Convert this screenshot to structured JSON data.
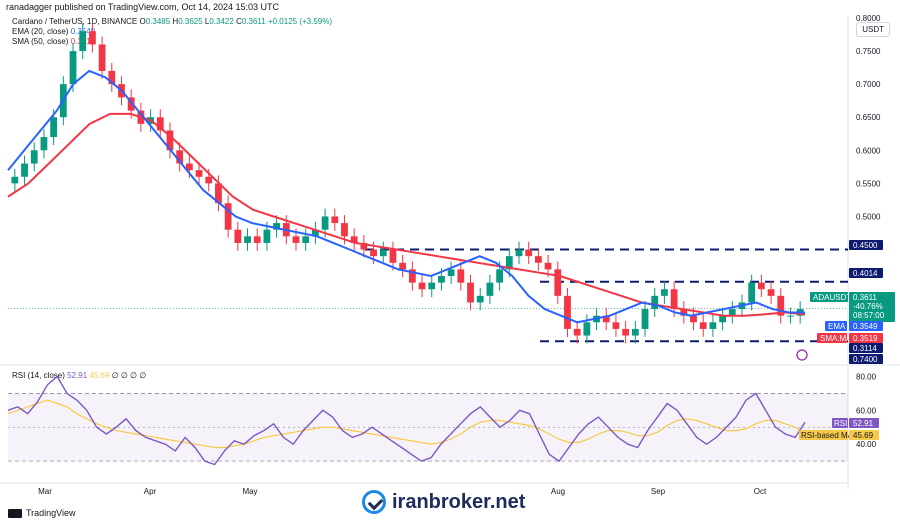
{
  "header": {
    "published": "ranadagger published on TradingView.com, Oct 14, 2024 15:03 UTC",
    "symbol_line": "Cardano / TetherUS, 1D, BINANCE",
    "ohlc": {
      "o_label": "O",
      "o": "0.3485",
      "h_label": "H",
      "h": "0.3625",
      "l_label": "L",
      "l": "0.3422",
      "c_label": "C",
      "c": "0.3611",
      "change": "+0.0125 (+3.59%)"
    },
    "ema_label": "EMA (20, close)",
    "ema_value": "0.3549",
    "sma_label": "SMA (50, close)",
    "sma_value": "0.3519",
    "rsi_label": "RSI (14, close)",
    "rsi_value": "52.91",
    "rsi_ma_value": "45.69",
    "rsi_extra": "∅ ∅ ∅ ∅"
  },
  "currency_button": "USDT",
  "footer": {
    "brand": "TradingView",
    "watermark": "iranbroker.net"
  },
  "colors": {
    "up": "#089981",
    "down": "#f23645",
    "ema": "#2962ff",
    "sma": "#f23645",
    "rsi": "#7e57c2",
    "rsi_ma": "#f7c948",
    "level": "#0d1b6e"
  },
  "chart_data": [
    {
      "type": "candlestick",
      "title": "Cardano / TetherUS, 1D, BINANCE",
      "ylim": [
        0.74,
        0.8
      ],
      "price_ticks": [
        0.8,
        0.75,
        0.7,
        0.65,
        0.6,
        0.55,
        0.5
      ],
      "x_ticks": [
        "Mar",
        "Apr",
        "May",
        "Jun",
        "Jul",
        "Aug",
        "Sep",
        "Oct"
      ],
      "levels": [
        0.45,
        0.4014,
        0.3114
      ],
      "price_tags": [
        {
          "label": "0.4500",
          "value": 0.45
        },
        {
          "label": "0.4014",
          "value": 0.4014
        },
        {
          "label": "ADAUSDT",
          "value": 0.3611,
          "extra": [
            "0.3611",
            "-40.76%",
            "08:57:00"
          ]
        },
        {
          "label": "EMA",
          "value": 0.3549
        },
        {
          "label": "SMA:MA",
          "value": 0.3519
        },
        {
          "label": "0.3114",
          "value": 0.3114
        },
        {
          "label": "0.7400",
          "value": 0.74
        }
      ],
      "close_series_approx": [
        0.56,
        0.58,
        0.6,
        0.62,
        0.65,
        0.7,
        0.75,
        0.78,
        0.76,
        0.72,
        0.7,
        0.68,
        0.66,
        0.64,
        0.65,
        0.63,
        0.6,
        0.58,
        0.57,
        0.56,
        0.55,
        0.52,
        0.48,
        0.46,
        0.47,
        0.46,
        0.48,
        0.49,
        0.47,
        0.46,
        0.47,
        0.48,
        0.5,
        0.49,
        0.47,
        0.46,
        0.45,
        0.44,
        0.45,
        0.43,
        0.42,
        0.4,
        0.39,
        0.4,
        0.41,
        0.42,
        0.4,
        0.37,
        0.38,
        0.4,
        0.42,
        0.44,
        0.45,
        0.44,
        0.43,
        0.42,
        0.38,
        0.33,
        0.32,
        0.34,
        0.35,
        0.34,
        0.33,
        0.32,
        0.33,
        0.36,
        0.38,
        0.39,
        0.36,
        0.35,
        0.34,
        0.33,
        0.34,
        0.35,
        0.36,
        0.37,
        0.4,
        0.39,
        0.38,
        0.35,
        0.35,
        0.36
      ],
      "ema_series_approx": [
        0.57,
        0.6,
        0.63,
        0.66,
        0.7,
        0.72,
        0.71,
        0.69,
        0.66,
        0.63,
        0.6,
        0.57,
        0.54,
        0.52,
        0.5,
        0.49,
        0.485,
        0.48,
        0.475,
        0.47,
        0.46,
        0.45,
        0.44,
        0.43,
        0.42,
        0.415,
        0.41,
        0.42,
        0.43,
        0.44,
        0.43,
        0.41,
        0.38,
        0.36,
        0.35,
        0.34,
        0.345,
        0.35,
        0.36,
        0.37,
        0.365,
        0.355,
        0.35,
        0.355,
        0.36,
        0.365,
        0.37,
        0.36,
        0.355,
        0.3549
      ],
      "sma_series_approx": [
        0.53,
        0.55,
        0.58,
        0.61,
        0.64,
        0.655,
        0.655,
        0.645,
        0.62,
        0.59,
        0.56,
        0.53,
        0.51,
        0.5,
        0.49,
        0.48,
        0.47,
        0.46,
        0.455,
        0.45,
        0.445,
        0.44,
        0.435,
        0.43,
        0.425,
        0.42,
        0.415,
        0.41,
        0.4,
        0.39,
        0.38,
        0.37,
        0.365,
        0.36,
        0.355,
        0.35,
        0.35,
        0.352,
        0.355,
        0.3519
      ]
    },
    {
      "type": "line",
      "title": "RSI (14, close)",
      "ylim": [
        20,
        85
      ],
      "y_ticks": [
        80,
        60,
        40
      ],
      "bands": [
        70,
        30
      ],
      "rsi_tags": [
        {
          "label": "RSI",
          "value": "52.91"
        },
        {
          "label": "RSI-based MA",
          "value": "45.69"
        }
      ],
      "rsi_series_approx": [
        60,
        62,
        58,
        65,
        75,
        80,
        70,
        66,
        60,
        50,
        46,
        50,
        55,
        48,
        44,
        42,
        40,
        36,
        44,
        38,
        30,
        28,
        36,
        42,
        40,
        45,
        48,
        52,
        44,
        40,
        48,
        54,
        60,
        56,
        48,
        44,
        46,
        50,
        46,
        42,
        38,
        34,
        30,
        32,
        40,
        46,
        52,
        58,
        62,
        56,
        50,
        54,
        60,
        58,
        46,
        34,
        30,
        38,
        46,
        52,
        56,
        50,
        44,
        40,
        38,
        48,
        56,
        64,
        60,
        52,
        44,
        40,
        44,
        50,
        56,
        66,
        70,
        60,
        50,
        46,
        44,
        52.91
      ],
      "rsi_ma_series_approx": [
        58,
        60,
        62,
        64,
        66,
        64,
        62,
        58,
        55,
        52,
        50,
        48,
        47,
        46,
        45,
        44,
        43,
        42,
        41,
        40,
        39,
        38,
        38,
        39,
        40,
        42,
        44,
        45,
        46,
        47,
        48,
        49,
        50,
        50,
        49,
        48,
        47,
        46,
        45,
        44,
        43,
        42,
        41,
        40,
        41,
        43,
        46,
        50,
        53,
        54,
        54,
        53,
        52,
        51,
        49,
        46,
        43,
        41,
        41,
        43,
        46,
        48,
        48,
        47,
        45,
        45,
        47,
        51,
        54,
        55,
        54,
        52,
        50,
        48,
        48,
        49,
        52,
        54,
        54,
        52,
        50,
        45.69
      ]
    }
  ]
}
